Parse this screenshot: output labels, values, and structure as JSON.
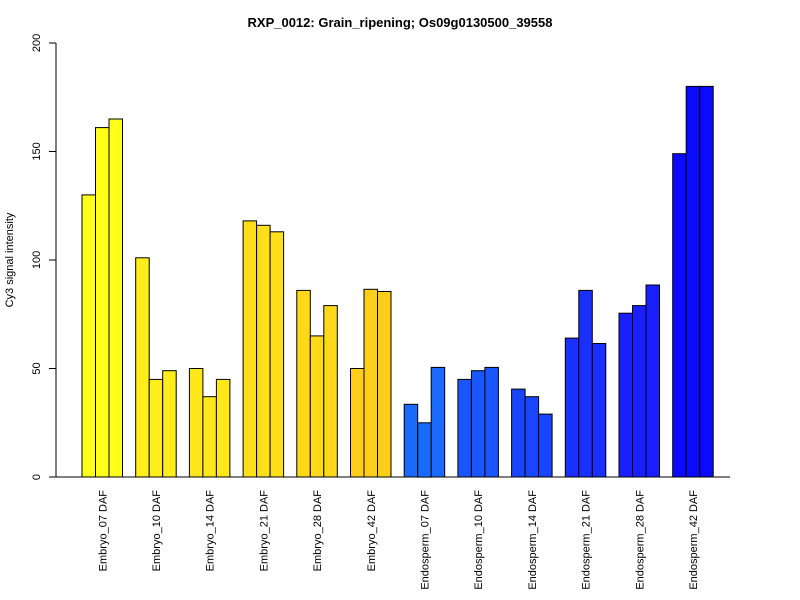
{
  "chart_data": {
    "type": "bar",
    "title": "RXP_0012: Grain_ripening; Os09g0130500_39558",
    "xlabel": "",
    "ylabel": "Cy3 signal intensity",
    "ylim": [
      0,
      200
    ],
    "yticks": [
      "0",
      "50",
      "100",
      "150",
      "200"
    ],
    "grid": false,
    "bars_per_group": 3,
    "groups": [
      {
        "label": "Embryo_07 DAF",
        "values": [
          130,
          161,
          165
        ],
        "color": "#ffff1a"
      },
      {
        "label": "Embryo_10 DAF",
        "values": [
          101,
          45,
          49
        ],
        "color": "#ffee1a"
      },
      {
        "label": "Embryo_14 DAF",
        "values": [
          50,
          37,
          45
        ],
        "color": "#ffe81a"
      },
      {
        "label": "Embryo_21 DAF",
        "values": [
          118,
          116,
          113
        ],
        "color": "#ffdf1a"
      },
      {
        "label": "Embryo_28 DAF",
        "values": [
          86,
          65,
          79
        ],
        "color": "#ffd81a"
      },
      {
        "label": "Embryo_42 DAF",
        "values": [
          50,
          86.5,
          85.5
        ],
        "color": "#ffce1a"
      },
      {
        "label": "Endosperm_07 DAF",
        "values": [
          33.5,
          25,
          50.5
        ],
        "color": "#1a6aff"
      },
      {
        "label": "Endosperm_10 DAF",
        "values": [
          45,
          49,
          50.5
        ],
        "color": "#1a56ff"
      },
      {
        "label": "Endosperm_14 DAF",
        "values": [
          40.5,
          37,
          29
        ],
        "color": "#1a45ff"
      },
      {
        "label": "Endosperm_21 DAF",
        "values": [
          64,
          86,
          61.5
        ],
        "color": "#1a30ff"
      },
      {
        "label": "Endosperm_28 DAF",
        "values": [
          75.5,
          79,
          88.5
        ],
        "color": "#1a1fff"
      },
      {
        "label": "Endosperm_42 DAF",
        "values": [
          149,
          180,
          180
        ],
        "color": "#0a0aff"
      }
    ]
  }
}
